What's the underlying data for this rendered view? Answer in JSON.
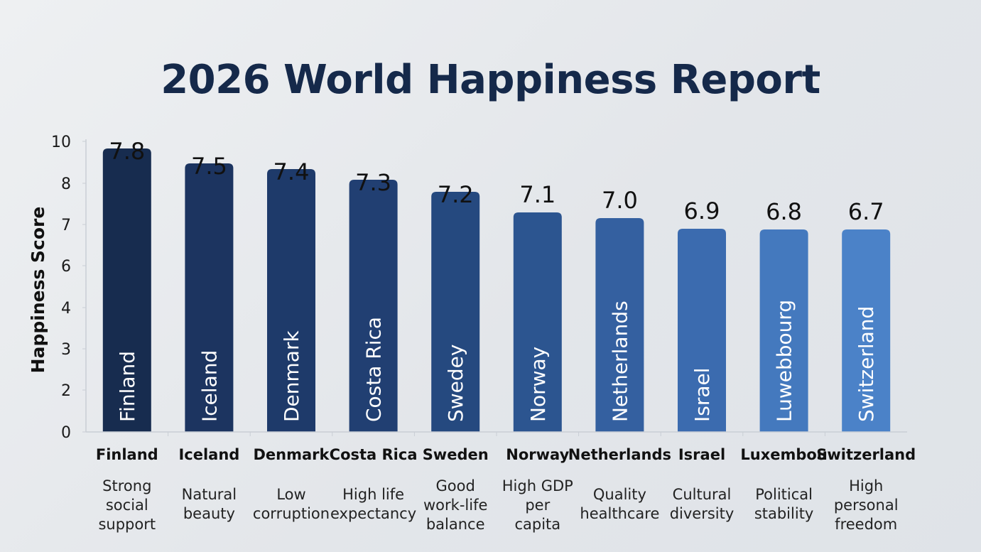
{
  "chart_data": {
    "type": "bar",
    "title": "2026 World Happiness Report",
    "xlabel": "",
    "ylabel": "Happiness Score",
    "yticks": [
      "0",
      "2",
      "3",
      "4",
      "6",
      "7",
      "8",
      "10"
    ],
    "grid": false,
    "categories": [
      "Finland",
      "Iceland",
      "Denmark",
      "Costa Rica",
      "Sweden",
      "Norway",
      "Netherlands",
      "Israel",
      "Luxembou",
      "Switzerland"
    ],
    "bar_labels": [
      "Finland",
      "Iceland",
      "Denmark",
      "Costa Rica",
      "Swedey",
      "Norway",
      "Netherlands",
      "Israel",
      "Luwebbourg",
      "Switzerland"
    ],
    "values": [
      7.8,
      7.5,
      7.4,
      7.3,
      7.2,
      7.1,
      7.0,
      6.9,
      6.8,
      6.7
    ],
    "value_labels": [
      "7.8",
      "7.5",
      "7.4",
      "7.3",
      "7.2",
      "7.1",
      "7.0",
      "6.9",
      "6.8",
      "6.7"
    ],
    "reasons": [
      [
        "Strong",
        "social",
        "support"
      ],
      [
        "Natural",
        "beauty"
      ],
      [
        "Low",
        "corruption"
      ],
      [
        "High life",
        "expectancy"
      ],
      [
        "Good",
        "work-life",
        "balance"
      ],
      [
        "High GDP",
        "per",
        "capita"
      ],
      [
        "Quality",
        "healthcare"
      ],
      [
        "Cultural",
        "diversity"
      ],
      [
        "Political",
        "stability"
      ],
      [
        "High",
        "personal",
        "freedom"
      ]
    ],
    "colors": [
      "#172c4f",
      "#1c3460",
      "#1e3a6a",
      "#213f72",
      "#25497f",
      "#2c5590",
      "#3460a0",
      "#3b6baf",
      "#4479be",
      "#4b82c8"
    ]
  }
}
